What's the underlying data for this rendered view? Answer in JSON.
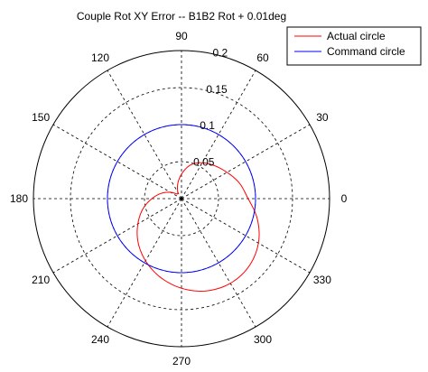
{
  "chart_data": {
    "type": "polar-line",
    "title": "Couple Rot XY Error -- B1B2 Rot + 0.01deg",
    "r_max": 0.2,
    "r_ticks": [
      0.05,
      0.1,
      0.15,
      0.2
    ],
    "r_tick_labels": [
      "0.05",
      "0.1",
      "0.15",
      "0.2"
    ],
    "angle_ticks_deg": [
      0,
      30,
      60,
      90,
      120,
      150,
      180,
      210,
      240,
      270,
      300,
      330
    ],
    "angle_tick_labels": [
      "0",
      "30",
      "60",
      "90",
      "120",
      "150",
      "180",
      "210",
      "240",
      "270",
      "300",
      "330"
    ],
    "grid": true,
    "legend_position": "top-right",
    "series": [
      {
        "name": "Actual circle",
        "color": "#ff0000",
        "theta_deg": [
          0,
          15,
          30,
          45,
          60,
          75,
          90,
          105,
          120,
          135,
          150,
          165,
          180,
          195,
          210,
          225,
          240,
          255,
          270,
          285,
          300,
          315,
          330,
          345,
          360
        ],
        "r": [
          0.09,
          0.081,
          0.071,
          0.063,
          0.056,
          0.047,
          0.033,
          0.02,
          0.01,
          0.009,
          0.017,
          0.028,
          0.04,
          0.054,
          0.068,
          0.083,
          0.097,
          0.11,
          0.121,
          0.129,
          0.132,
          0.129,
          0.12,
          0.106,
          0.09
        ]
      },
      {
        "name": "Command circle",
        "color": "#0000ff",
        "theta_deg": [
          0,
          30,
          60,
          90,
          120,
          150,
          180,
          210,
          240,
          270,
          300,
          330,
          360
        ],
        "r": [
          0.1,
          0.1,
          0.1,
          0.1,
          0.1,
          0.1,
          0.1,
          0.1,
          0.1,
          0.1,
          0.1,
          0.1,
          0.1
        ]
      }
    ]
  }
}
